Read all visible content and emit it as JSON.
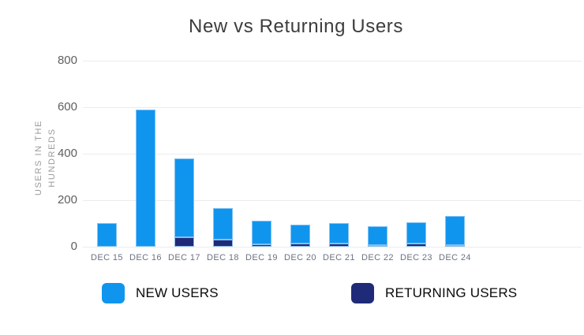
{
  "title": "New vs Returning Users",
  "y_axis": {
    "title_line1": "USERS IN THE",
    "title_line2": "HUNDREDS",
    "ticks": [
      "800",
      "600",
      "400",
      "200",
      "0"
    ]
  },
  "legend": {
    "new_label": "NEW USERS",
    "returning_label": "RETURNING USERS"
  },
  "colors": {
    "new": "#1095EE",
    "returning": "#1F2A78",
    "grid": "#ececec",
    "title_text": "#3d3d3d",
    "axis_text": "#5f5f5f",
    "x_label_text": "#6b7280"
  },
  "chart_data": {
    "type": "bar",
    "stacked": true,
    "title": "New vs Returning Users",
    "ylabel": "USERS IN THE HUNDREDS",
    "ylim": [
      0,
      800
    ],
    "grid": true,
    "legend_position": "bottom",
    "categories": [
      "DEC 15",
      "DEC 16",
      "DEC 17",
      "DEC 18",
      "DEC 19",
      "DEC 20",
      "DEC 21",
      "DEC 22",
      "DEC 23",
      "DEC 24"
    ],
    "series": [
      {
        "name": "NEW USERS",
        "color": "#1095EE",
        "values": [
          100,
          590,
          340,
          135,
          100,
          80,
          88,
          82,
          92,
          125
        ]
      },
      {
        "name": "RETURNING USERS",
        "color": "#1F2A78",
        "values": [
          0,
          0,
          40,
          30,
          10,
          15,
          12,
          8,
          12,
          8
        ]
      }
    ]
  }
}
